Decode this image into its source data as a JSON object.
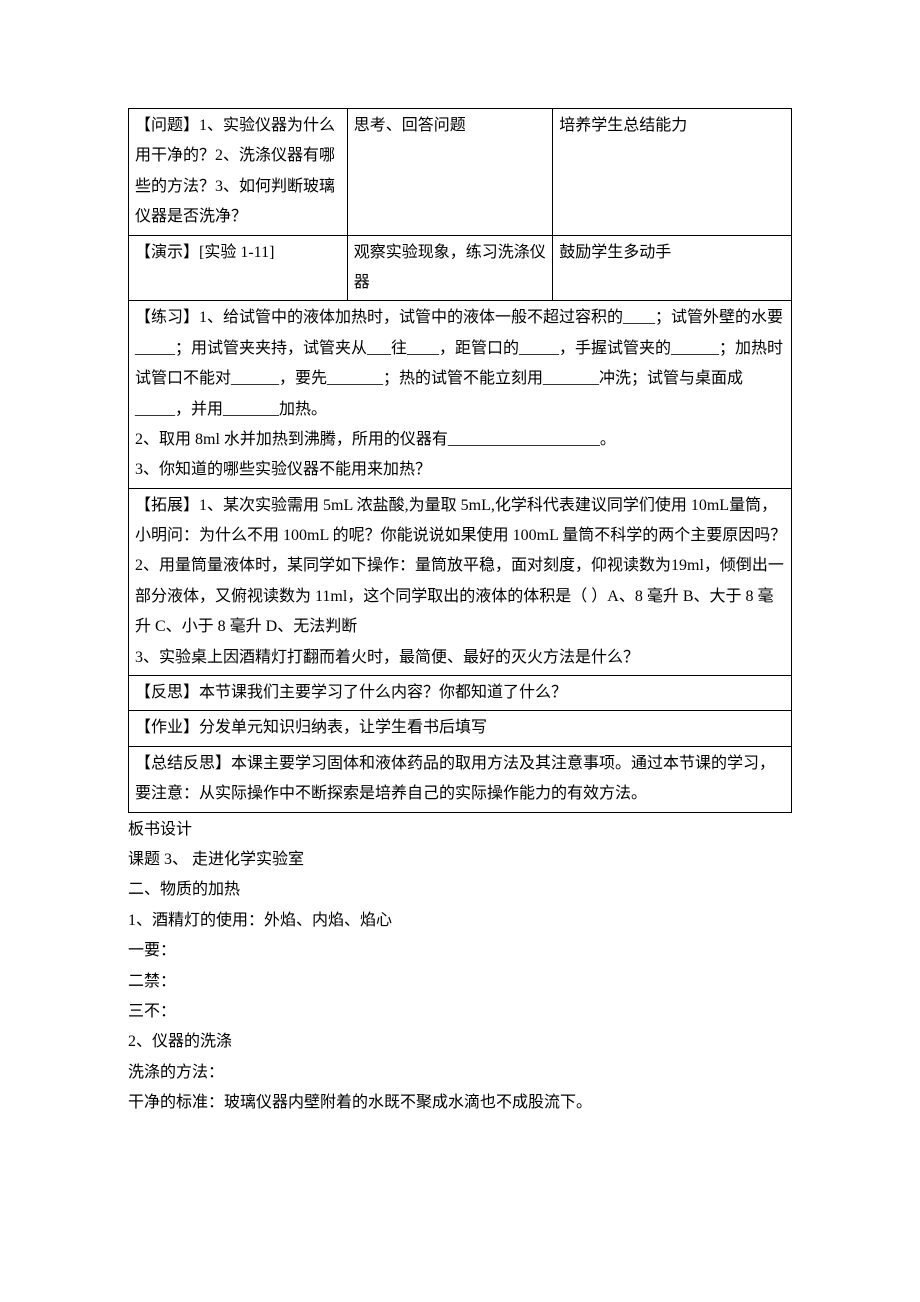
{
  "table": {
    "row1": {
      "c1": "【问题】1、实验仪器为什么用干净的？2、洗涤仪器有哪些的方法？3、如何判断玻璃仪器是否洗净？",
      "c2": "思考、回答问题",
      "c3": "培养学生总结能力"
    },
    "row2": {
      "c1": "【演示】[实验 1-11]",
      "c2": "观察实验现象，练习洗涤仪器",
      "c3": "鼓励学生多动手"
    },
    "row3": {
      "full": "【练习】1、给试管中的液体加热时，试管中的液体一般不超过容积的____；试管外壁的水要_____；用试管夹夹持，试管夹从___往____，距管口的_____，手握试管夹的______；加热时试管口不能对______，要先_______；热的试管不能立刻用_______冲洗；试管与桌面成_____，并用_______加热。\n2、取用 8ml 水并加热到沸腾，所用的仪器有___________________。\n3、你知道的哪些实验仪器不能用来加热？"
    },
    "row4": {
      "full": "【拓展】1、某次实验需用 5mL 浓盐酸,为量取 5mL,化学科代表建议同学们使用 10mL量筒，小明问：为什么不用 100mL 的呢？你能说说如果使用 100mL 量筒不科学的两个主要原因吗？\n2、用量筒量液体时，某同学如下操作：量筒放平稳，面对刻度，仰视读数为19ml，倾倒出一部分液体，又俯视读数为 11ml，这个同学取出的液体的体积是（   ）A、8 毫升  B、大于 8 毫升  C、小于 8 毫升 D、无法判断\n3、实验桌上因酒精灯打翻而着火时，最简便、最好的灭火方法是什么？"
    },
    "row5": {
      "full": "【反思】本节课我们主要学习了什么内容？你都知道了什么？"
    },
    "row6": {
      "full": "【作业】分发单元知识归纳表，让学生看书后填写"
    },
    "row7": {
      "full": "【总结反思】本课主要学习固体和液体药品的取用方法及其注意事项。通过本节课的学习，要注意：从实际操作中不断探索是培养自己的实际操作能力的有效方法。"
    }
  },
  "post": {
    "p1": "板书设计",
    "p2": "课题 3、  走进化学实验室",
    "p3": "二、物质的加热",
    "p4": "1、酒精灯的使用：外焰、内焰、焰心",
    "p5": "一要：",
    "p6": "二禁：",
    "p7": "三不：",
    "p8": "2、仪器的洗涤",
    "p9": "洗涤的方法：",
    "p10": "干净的标准：玻璃仪器内壁附着的水既不聚成水滴也不成股流下。"
  }
}
